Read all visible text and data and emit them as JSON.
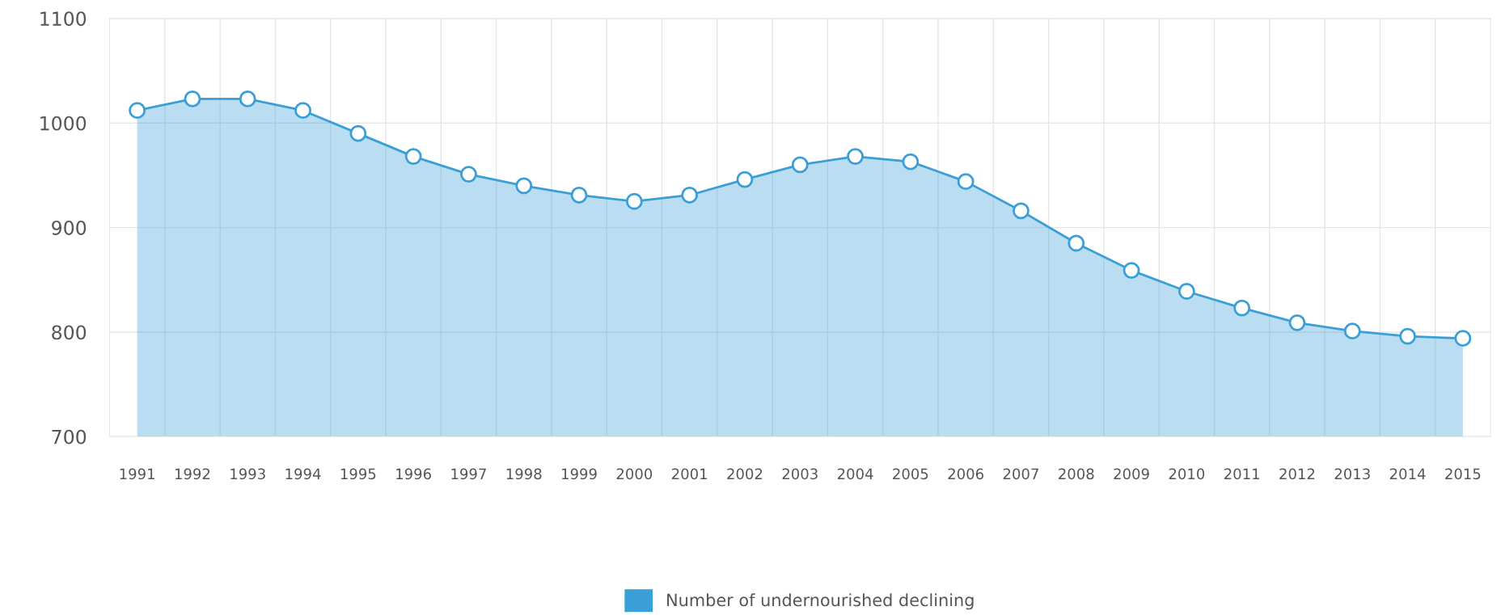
{
  "chart_data": {
    "type": "area",
    "categories": [
      "1991",
      "1992",
      "1993",
      "1994",
      "1995",
      "1996",
      "1997",
      "1998",
      "1999",
      "2000",
      "2001",
      "2002",
      "2003",
      "2004",
      "2005",
      "2006",
      "2007",
      "2008",
      "2009",
      "2010",
      "2011",
      "2012",
      "2013",
      "2014",
      "2015"
    ],
    "series": [
      {
        "name": "Number of undernourished declining",
        "color": "#3a9fd6",
        "values": [
          1012,
          1023,
          1023,
          1012,
          990,
          968,
          951,
          940,
          931,
          925,
          931,
          946,
          960,
          968,
          963,
          944,
          916,
          885,
          859,
          839,
          823,
          809,
          801,
          796,
          794
        ]
      }
    ],
    "ylim": [
      700,
      1100
    ],
    "yticks": [
      700,
      800,
      900,
      1000,
      1100
    ],
    "grid": true,
    "legend": "bottom",
    "marker": "circle"
  }
}
